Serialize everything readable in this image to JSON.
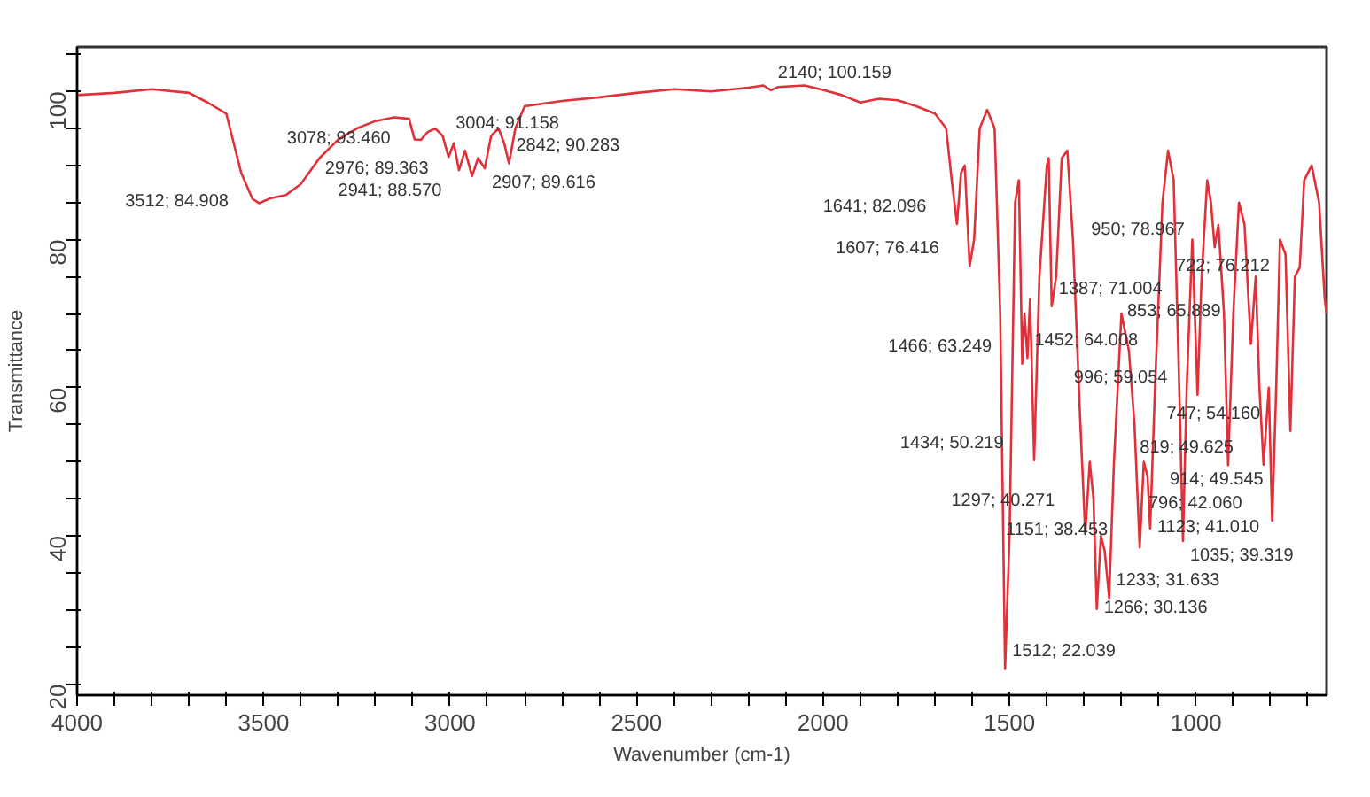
{
  "chart_data": {
    "type": "line",
    "xlabel": "Wavenumber (cm-1)",
    "ylabel": "Transmittance",
    "xlim": [
      4000,
      650
    ],
    "ylim": [
      18.5,
      106
    ],
    "xticks": [
      4000,
      {
        "value": 3900,
        "label": null
      },
      {
        "value": 3800,
        "label": null
      },
      {
        "value": 3700,
        "label": null
      },
      {
        "value": 3600,
        "label": null
      },
      3500,
      {
        "value": 3400,
        "label": null
      },
      {
        "value": 3300,
        "label": null
      },
      {
        "value": 3200,
        "label": null
      },
      {
        "value": 3100,
        "label": null
      },
      3000,
      {
        "value": 2900,
        "label": null
      },
      {
        "value": 2800,
        "label": null
      },
      {
        "value": 2700,
        "label": null
      },
      {
        "value": 2600,
        "label": null
      },
      2500,
      {
        "value": 2400,
        "label": null
      },
      {
        "value": 2300,
        "label": null
      },
      {
        "value": 2200,
        "label": null
      },
      {
        "value": 2100,
        "label": null
      },
      2000,
      {
        "value": 1900,
        "label": null
      },
      {
        "value": 1800,
        "label": null
      },
      {
        "value": 1700,
        "label": null
      },
      {
        "value": 1600,
        "label": null
      },
      1500,
      {
        "value": 1400,
        "label": null
      },
      {
        "value": 1300,
        "label": null
      },
      {
        "value": 1200,
        "label": null
      },
      {
        "value": 1100,
        "label": null
      },
      1000,
      {
        "value": 900,
        "label": null
      },
      {
        "value": 800,
        "label": null
      },
      {
        "value": 700,
        "label": null
      }
    ],
    "yticks": [
      20,
      {
        "value": 25,
        "label": null
      },
      {
        "value": 30,
        "label": null
      },
      {
        "value": 35,
        "label": null
      },
      40,
      {
        "value": 45,
        "label": null
      },
      {
        "value": 50,
        "label": null
      },
      {
        "value": 55,
        "label": null
      },
      60,
      {
        "value": 65,
        "label": null
      },
      {
        "value": 70,
        "label": null
      },
      {
        "value": 75,
        "label": null
      },
      80,
      {
        "value": 85,
        "label": null
      },
      {
        "value": 90,
        "label": null
      },
      {
        "value": 95,
        "label": null
      },
      100,
      {
        "value": 105,
        "label": null
      }
    ],
    "grid": false,
    "marker": "none",
    "line_style": "solid",
    "series": [
      {
        "color": "#e0303a",
        "x": [
          4000,
          3900,
          3800,
          3700,
          3650,
          3600,
          3560,
          3530,
          3512,
          3480,
          3440,
          3400,
          3350,
          3300,
          3250,
          3200,
          3150,
          3110,
          3095,
          3078,
          3060,
          3040,
          3020,
          3004,
          2990,
          2976,
          2960,
          2941,
          2925,
          2907,
          2890,
          2870,
          2855,
          2842,
          2825,
          2800,
          2700,
          2600,
          2500,
          2400,
          2300,
          2200,
          2160,
          2140,
          2120,
          2050,
          2000,
          1950,
          1900,
          1850,
          1800,
          1750,
          1700,
          1670,
          1655,
          1641,
          1630,
          1620,
          1607,
          1595,
          1580,
          1560,
          1540,
          1525,
          1512,
          1500,
          1485,
          1475,
          1466,
          1460,
          1452,
          1445,
          1434,
          1420,
          1400,
          1395,
          1387,
          1375,
          1360,
          1345,
          1330,
          1310,
          1297,
          1285,
          1275,
          1266,
          1255,
          1245,
          1233,
          1220,
          1200,
          1180,
          1165,
          1151,
          1140,
          1130,
          1123,
          1110,
          1090,
          1075,
          1060,
          1045,
          1035,
          1025,
          1010,
          996,
          985,
          970,
          960,
          950,
          940,
          925,
          914,
          900,
          885,
          870,
          853,
          840,
          830,
          819,
          805,
          796,
          785,
          775,
          760,
          747,
          735,
          722,
          710,
          690,
          670,
          655,
          650
        ],
        "values": [
          99.5,
          99.8,
          100.3,
          99.8,
          98.5,
          97,
          89,
          85.5,
          84.908,
          85.6,
          86,
          87.5,
          91,
          93.5,
          95,
          96,
          96.5,
          96.3,
          93.5,
          93.46,
          94.5,
          95,
          94,
          91.158,
          93,
          89.363,
          92,
          88.57,
          91,
          89.616,
          94,
          95,
          93,
          90.283,
          95,
          98,
          98.7,
          99.2,
          99.8,
          100.3,
          100,
          100.5,
          100.8,
          100.159,
          100.6,
          100.8,
          100.2,
          99.5,
          98.5,
          99,
          98.8,
          98,
          97,
          95,
          88,
          82.096,
          89,
          90,
          76.416,
          80,
          95,
          97.5,
          95,
          70,
          22.039,
          40,
          85,
          88,
          63.249,
          70,
          64.008,
          72,
          50.219,
          75,
          90,
          91,
          71.004,
          75,
          91,
          92,
          80,
          55,
          40.271,
          50,
          45,
          30.136,
          40,
          38,
          31.633,
          50,
          70,
          65,
          55,
          38.453,
          50,
          48,
          41.01,
          60,
          85,
          92,
          88,
          60,
          39.319,
          60,
          80,
          59.054,
          75,
          88,
          85,
          78.967,
          82,
          70,
          49.545,
          70,
          85,
          82,
          65.889,
          75,
          60,
          49.625,
          60,
          42.06,
          60,
          80,
          78,
          54.16,
          75,
          76.212,
          88,
          90,
          85,
          72,
          70
        ]
      }
    ],
    "annotations": [
      {
        "text": "3512; 84.908",
        "x": 3512,
        "y": 84.908
      },
      {
        "text": "3078; 93.460",
        "x": 3078,
        "y": 93.46
      },
      {
        "text": "2976; 89.363",
        "x": 2976,
        "y": 89.363
      },
      {
        "text": "2842; 90.283",
        "x": 2842,
        "y": 90.283
      },
      {
        "text": "3004; 91.158",
        "x": 3004,
        "y": 91.158
      },
      {
        "text": "2907; 89.616",
        "x": 2907,
        "y": 89.616
      },
      {
        "text": "2941; 88.570",
        "x": 2941,
        "y": 88.57
      },
      {
        "text": "2140; 100.159",
        "x": 2140,
        "y": 100.159
      },
      {
        "text": "1641; 82.096",
        "x": 1641,
        "y": 82.096
      },
      {
        "text": "1607; 76.416",
        "x": 1607,
        "y": 76.416
      },
      {
        "text": "1387; 71.004",
        "x": 1387,
        "y": 71.004
      },
      {
        "text": "1466; 63.249",
        "x": 1466,
        "y": 63.249
      },
      {
        "text": "1452; 64.008",
        "x": 1452,
        "y": 64.008
      },
      {
        "text": "1434; 50.219",
        "x": 1434,
        "y": 50.219
      },
      {
        "text": "747; 54.160",
        "x": 747,
        "y": 54.16
      },
      {
        "text": "1123; 41.010",
        "x": 1123,
        "y": 41.01
      },
      {
        "text": "1151; 38.453",
        "x": 1151,
        "y": 38.453
      },
      {
        "text": "1297; 40.271",
        "x": 1297,
        "y": 40.271
      },
      {
        "text": "1035; 39.319",
        "x": 1035,
        "y": 39.319
      },
      {
        "text": "1233; 31.633",
        "x": 1233,
        "y": 31.633
      },
      {
        "text": "1266; 30.136",
        "x": 1266,
        "y": 30.136
      },
      {
        "text": "1512; 22.039",
        "x": 1512,
        "y": 22.039
      },
      {
        "text": "950; 78.967",
        "x": 950,
        "y": 78.967
      },
      {
        "text": "722; 76.212",
        "x": 722,
        "y": 76.212
      },
      {
        "text": "853; 65.889",
        "x": 853,
        "y": 65.889
      },
      {
        "text": "996; 59.054",
        "x": 996,
        "y": 59.054
      },
      {
        "text": "819; 49.625",
        "x": 819,
        "y": 49.625
      },
      {
        "text": "914; 49.545",
        "x": 914,
        "y": 49.545
      },
      {
        "text": "796; 42.060",
        "x": 796,
        "y": 42.06
      }
    ]
  }
}
